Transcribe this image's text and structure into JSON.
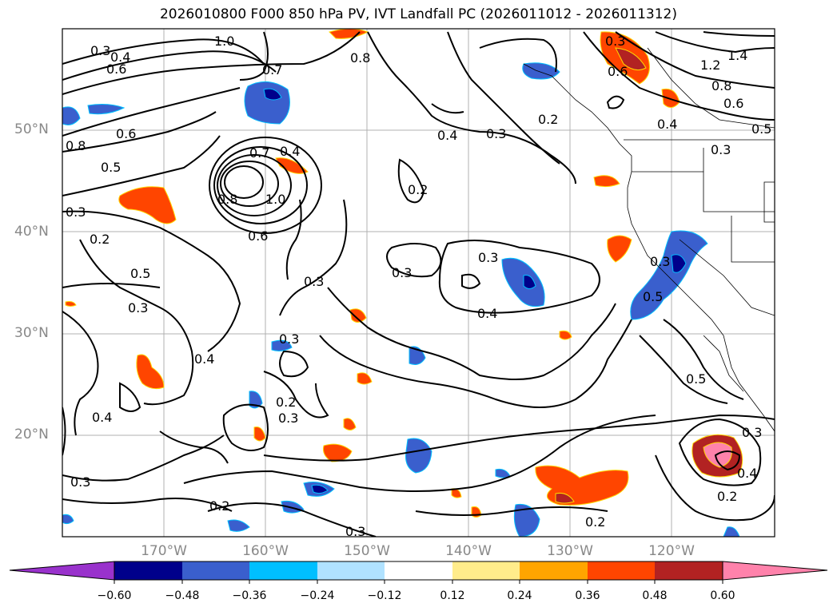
{
  "title": "2026010800 F000 850 hPa PV, IVT Landfall PC (2026011012 - 2026011312)",
  "axes": {
    "lat_labels": [
      "50°N",
      "40°N",
      "30°N",
      "20°N"
    ],
    "lon_labels": [
      "170°W",
      "160°W",
      "150°W",
      "140°W",
      "130°W",
      "120°W"
    ]
  },
  "contour_labels": [
    "0.3",
    "0.4",
    "0.6",
    "1.0",
    "0.8",
    "0.7",
    "0.8",
    "0.6",
    "0.5",
    "0.3",
    "0.2",
    "0.8",
    "0.6",
    "0.4",
    "1.0",
    "0.7",
    "0.3",
    "0.5",
    "0.3",
    "0.4",
    "0.3",
    "0.2",
    "0.4",
    "0.3",
    "0.2",
    "0.3",
    "0.3",
    "0.3",
    "0.4",
    "0.3",
    "0.4",
    "0.2",
    "0.5",
    "0.3",
    "0.2",
    "0.3",
    "0.4",
    "0.2",
    "0.5",
    "0.3",
    "1.2",
    "1.4",
    "0.8",
    "0.6",
    "0.5",
    "0.4",
    "0.6",
    "0.3",
    "0.2",
    "0.3"
  ],
  "colorbar": {
    "ticks": [
      "−0.60",
      "−0.48",
      "−0.36",
      "−0.24",
      "−0.12",
      "0.12",
      "0.24",
      "0.36",
      "0.48",
      "0.60"
    ],
    "colors": [
      "#9932cc",
      "#00008b",
      "#3a5fcd",
      "#00bfff",
      "#b0e2ff",
      "#ffffff",
      "#ffec8b",
      "#ffa500",
      "#ff4500",
      "#b22222",
      "#ff82ab"
    ]
  }
}
